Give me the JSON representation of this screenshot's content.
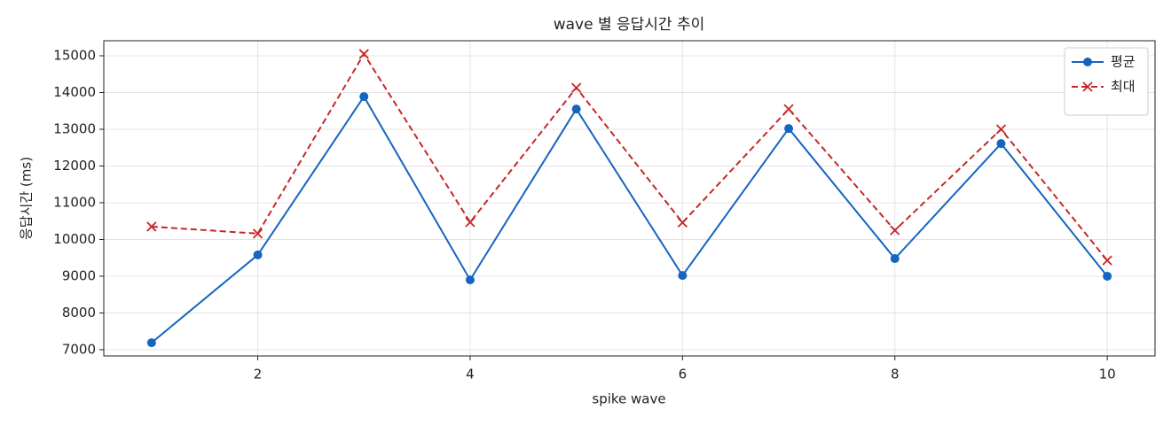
{
  "chart_data": {
    "type": "line",
    "title": "wave 별 응답시간 추이",
    "x_label": "spike wave",
    "y_label": "응답시간 (ms)",
    "x": [
      1,
      2,
      3,
      4,
      5,
      6,
      7,
      8,
      9,
      10
    ],
    "series": [
      {
        "name": "평균",
        "color": "#1565c0",
        "marker": "o",
        "dash": "solid",
        "values": [
          7190,
          9580,
          13890,
          8900,
          13550,
          9020,
          13020,
          9480,
          12610,
          9000
        ]
      },
      {
        "name": "최대",
        "color": "#c62828",
        "marker": "x",
        "dash": "dashed",
        "values": [
          10350,
          10160,
          15050,
          10470,
          14130,
          10460,
          13550,
          10250,
          13000,
          9430
        ]
      }
    ],
    "xlim": [
      0.55,
      10.45
    ],
    "ylim": [
      6830,
      15410
    ],
    "xticks": [
      2,
      4,
      6,
      8,
      10
    ],
    "yticks": [
      7000,
      8000,
      9000,
      10000,
      11000,
      12000,
      13000,
      14000,
      15000
    ],
    "grid": true,
    "legend": "upper right"
  }
}
